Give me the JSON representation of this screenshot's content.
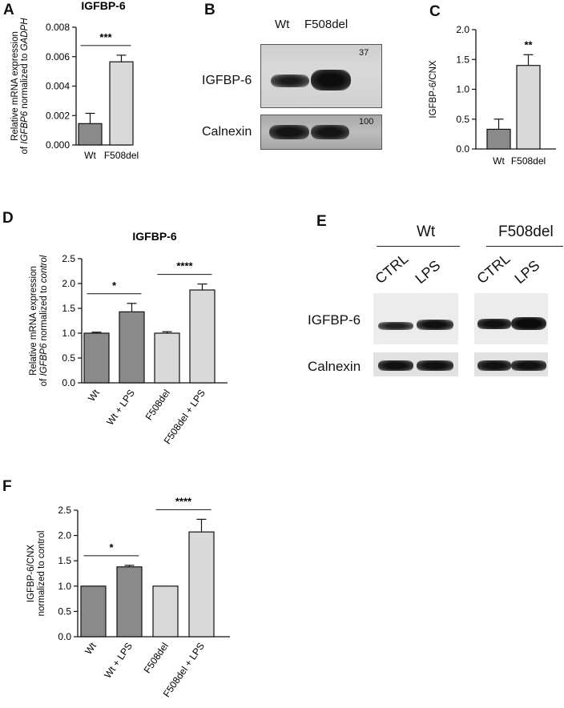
{
  "panel_letters": [
    "A",
    "B",
    "C",
    "D",
    "E",
    "F"
  ],
  "chart_data": [
    {
      "id": "A",
      "type": "bar",
      "title": "IGFBP-6",
      "ylabel_line1": "Relative mRNA expression",
      "ylabel_line2_parts": [
        "of ",
        "IGFBP6",
        " normalized to ",
        "GADPH"
      ],
      "categories": [
        "Wt",
        "F508del"
      ],
      "values": [
        0.00145,
        0.00565
      ],
      "errors": [
        0.0007,
        0.00045
      ],
      "colors": [
        "#8a8a8a",
        "#d9d9d9"
      ],
      "ylim": [
        0,
        0.008
      ],
      "ticks": [
        "0.000",
        "0.002",
        "0.004",
        "0.006",
        "0.008"
      ],
      "significance": [
        {
          "from": 0,
          "to": 1,
          "label": "***"
        }
      ]
    },
    {
      "id": "C",
      "type": "bar",
      "title": "",
      "ylabel": "IGFBP-6/CNX",
      "categories": [
        "Wt",
        "F508del"
      ],
      "values": [
        0.33,
        1.4
      ],
      "errors": [
        0.17,
        0.18
      ],
      "colors": [
        "#8a8a8a",
        "#d9d9d9"
      ],
      "ylim": [
        0,
        2.0
      ],
      "ticks": [
        "0.0",
        "0.5",
        "1.0",
        "1.5",
        "2.0"
      ],
      "significance": [
        {
          "on": 1,
          "label": "**"
        }
      ]
    },
    {
      "id": "D",
      "type": "bar",
      "title": "IGFBP-6",
      "ylabel_line1": "Relative mRNA expression",
      "ylabel_line2_parts": [
        "of ",
        "IGFBP6",
        " normalized to ",
        "control"
      ],
      "categories": [
        "Wt",
        "Wt + LPS",
        "F508del",
        "F508del + LPS"
      ],
      "values": [
        1.0,
        1.43,
        1.0,
        1.87
      ],
      "errors": [
        0.02,
        0.17,
        0.03,
        0.12
      ],
      "colors": [
        "#8a8a8a",
        "#8a8a8a",
        "#d9d9d9",
        "#d9d9d9"
      ],
      "ylim": [
        0,
        2.5
      ],
      "ticks": [
        "0.0",
        "0.5",
        "1.0",
        "1.5",
        "2.0",
        "2.5"
      ],
      "significance": [
        {
          "from": 0,
          "to": 1,
          "label": "*"
        },
        {
          "from": 2,
          "to": 3,
          "label": "****"
        }
      ]
    },
    {
      "id": "F",
      "type": "bar",
      "title": "",
      "ylabel_line1": "IGFBP-6/CNX",
      "ylabel_line2": "normalized to control",
      "categories": [
        "Wt",
        "Wt + LPS",
        "F508del",
        "F508del + LPS"
      ],
      "values": [
        1.0,
        1.38,
        1.0,
        2.07
      ],
      "errors": [
        0.0,
        0.03,
        0.0,
        0.25
      ],
      "colors": [
        "#8a8a8a",
        "#8a8a8a",
        "#d9d9d9",
        "#d9d9d9"
      ],
      "ylim": [
        0,
        2.5
      ],
      "ticks": [
        "0.0",
        "0.5",
        "1.0",
        "1.5",
        "2.0",
        "2.5"
      ],
      "significance": [
        {
          "from": 0,
          "to": 1,
          "label": "*"
        },
        {
          "from": 2,
          "to": 3,
          "label": "****"
        }
      ]
    }
  ],
  "blot_B": {
    "lanes": [
      "Wt",
      "F508del"
    ],
    "rows": [
      "IGFBP-6",
      "Calnexin"
    ],
    "markers": [
      "37",
      "100"
    ]
  },
  "blot_E": {
    "groups": [
      "Wt",
      "F508del"
    ],
    "lanes": [
      "CTRL",
      "LPS",
      "CTRL",
      "LPS"
    ],
    "rows": [
      "IGFBP-6",
      "Calnexin"
    ]
  }
}
